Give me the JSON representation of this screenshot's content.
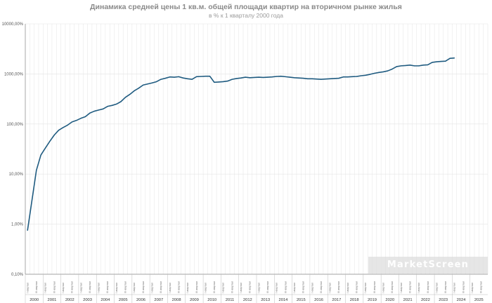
{
  "title": "Динамика средней цены 1 кв.м. общей площади квартир на вторичном рынке жилья",
  "subtitle": "в % к 1 кварталу 2000 года",
  "watermark": "MarketScreen",
  "colors": {
    "line": "#1f5b80",
    "grid": "#e4e4e4",
    "axis": "#888888"
  },
  "chart_data": {
    "type": "line",
    "title": "Динамика средней цены 1 кв.м. общей площади квартир на вторичном рынке жилья",
    "subtitle": "в % к 1 кварталу 2000 года",
    "y_scale": "log",
    "ylim": [
      0.1,
      10000
    ],
    "y_ticks": [
      "0,10%",
      "1,00%",
      "10,00%",
      "100,00%",
      "1000,00%",
      "10000,00%"
    ],
    "years": [
      "2000",
      "2001",
      "2002",
      "2003",
      "2004",
      "2005",
      "2006",
      "2007",
      "2008",
      "2009",
      "2010",
      "2011",
      "2012",
      "2013",
      "2014",
      "2015",
      "2016",
      "2017",
      "2018",
      "2019",
      "2020",
      "2021",
      "2022",
      "2023",
      "2024",
      "2025"
    ],
    "quarter_labels": [
      "I квартал",
      "III квартал"
    ],
    "grid": true,
    "series": [
      {
        "values": [
          0.75,
          3,
          12,
          24,
          33,
          45,
          60,
          75,
          85,
          95,
          110,
          118,
          130,
          140,
          165,
          180,
          190,
          200,
          225,
          235,
          250,
          280,
          340,
          390,
          460,
          520,
          600,
          630,
          660,
          700,
          780,
          820,
          870,
          860,
          880,
          830,
          800,
          780,
          880,
          890,
          900,
          900,
          680,
          690,
          700,
          720,
          780,
          810,
          830,
          860,
          840,
          850,
          860,
          850,
          860,
          870,
          890,
          900,
          880,
          860,
          840,
          830,
          820,
          800,
          800,
          790,
          780,
          790,
          800,
          810,
          820,
          870,
          870,
          880,
          890,
          920,
          940,
          980,
          1030,
          1070,
          1100,
          1150,
          1250,
          1400,
          1450,
          1470,
          1500,
          1450,
          1450,
          1500,
          1520,
          1700,
          1750,
          1780,
          1800,
          2050,
          2080
        ]
      }
    ]
  }
}
